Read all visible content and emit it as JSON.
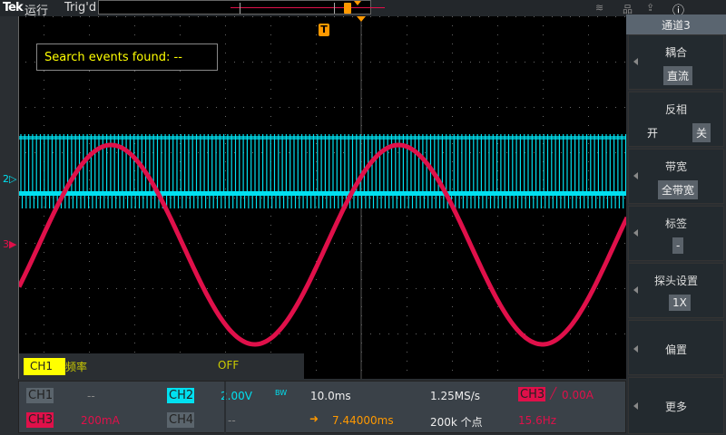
{
  "topbar": {
    "brand": "Tek",
    "run_state": "运行",
    "trigger_state": "Trig'd"
  },
  "icons": [
    "wifi-icon",
    "network-icon",
    "export-icon",
    "help-icon"
  ],
  "search": {
    "text": "Search events found:  --"
  },
  "colors": {
    "ch1": "#ffff00",
    "ch2": "#00e0f0",
    "ch3": "#e0104a",
    "ch4": "#5a646c",
    "trigger": "#ff9900"
  },
  "ch1_measure": {
    "tag": "CH1",
    "label": "频率",
    "value": "OFF"
  },
  "channels": {
    "ch1": {
      "tag": "CH1",
      "value": "--"
    },
    "ch2": {
      "tag": "CH2",
      "value": "2.00V",
      "bw": "BW"
    },
    "ch3": {
      "tag": "CH3",
      "value": "200mA"
    },
    "ch4": {
      "tag": "CH4",
      "value": "--"
    }
  },
  "timebase": {
    "scale": "10.0ms",
    "sample_rate": "1.25MS/s",
    "position": "7.44000ms",
    "record_length": "200k 个点"
  },
  "trigger": {
    "source": "CH3",
    "level": "0.00A",
    "frequency": "15.6Hz"
  },
  "markers": {
    "ch2": "2",
    "ch3": "3",
    "trigger": "T"
  },
  "menu": {
    "title": "通道3",
    "coupling": {
      "label": "耦合",
      "value": "直流"
    },
    "invert": {
      "label": "反相",
      "on": "开",
      "off": "关"
    },
    "bandwidth": {
      "label": "带宽",
      "value": "全带宽"
    },
    "label": {
      "label": "标签",
      "value": "-"
    },
    "probe": {
      "label": "探头设置",
      "value": "1X"
    },
    "offset": {
      "label": "偏置"
    },
    "more": {
      "label": "更多"
    }
  }
}
